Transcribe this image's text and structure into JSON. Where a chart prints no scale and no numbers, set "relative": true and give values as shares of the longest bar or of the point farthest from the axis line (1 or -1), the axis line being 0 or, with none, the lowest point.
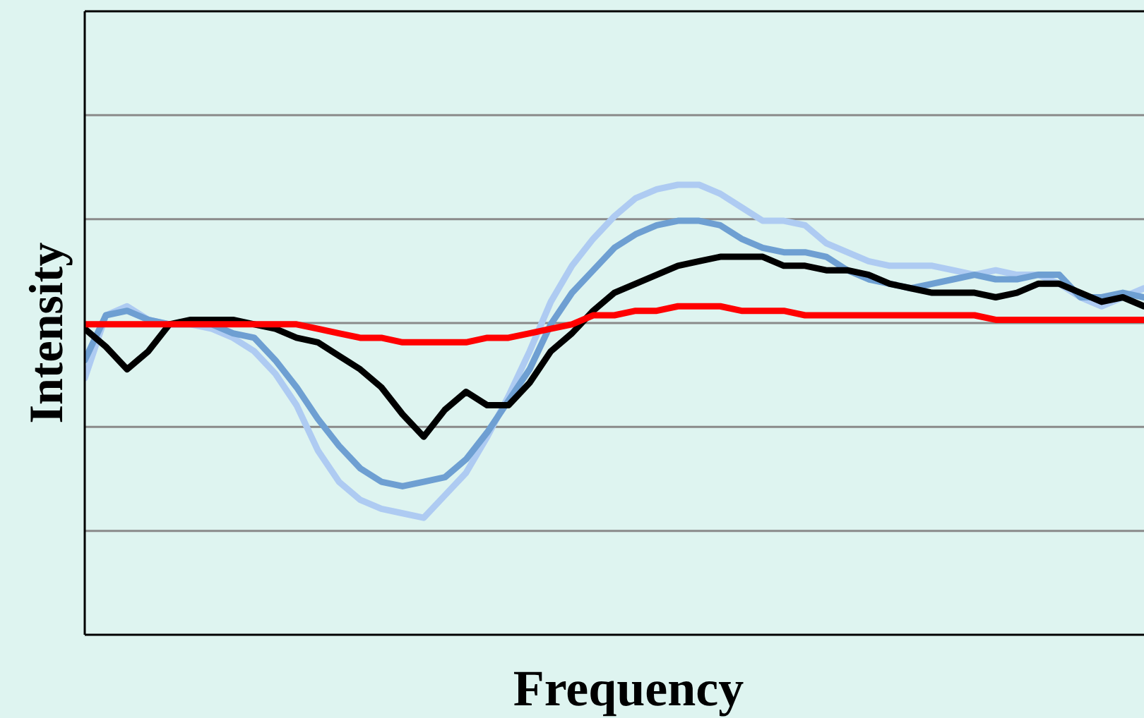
{
  "chart_data": {
    "type": "line",
    "relative": true,
    "xlabel": "Frequency",
    "ylabel": "Intensity",
    "grid": "y",
    "categories": [
      null,
      null,
      null,
      null,
      null,
      null,
      null,
      null,
      null,
      null,
      null,
      null,
      null,
      null,
      null,
      null,
      null,
      null,
      null,
      null,
      null,
      null,
      null,
      null,
      null,
      null,
      null,
      null,
      null,
      null,
      null,
      null,
      null,
      null,
      null,
      null,
      null,
      null,
      null,
      null,
      null,
      null,
      null,
      null,
      null,
      null,
      null,
      null,
      null,
      null,
      null
    ],
    "series": [
      {
        "color": "#aecbf2",
        "values": [
          0.57,
          0.71,
          0.73,
          0.7,
          0.69,
          0.69,
          0.68,
          0.66,
          0.63,
          0.58,
          0.51,
          0.41,
          0.34,
          0.3,
          0.28,
          0.27,
          0.26,
          0.31,
          0.36,
          0.44,
          0.53,
          0.63,
          0.74,
          0.82,
          0.88,
          0.93,
          0.97,
          0.99,
          1,
          1.0,
          0.98,
          0.95,
          0.92,
          0.92,
          0.91,
          0.87,
          0.85,
          0.83,
          0.82,
          0.82,
          0.82,
          0.81,
          0.8,
          0.81,
          0.8,
          0.8,
          0.78,
          0.75,
          0.73,
          0.75,
          0.77
        ]
      },
      {
        "color": "#6e9fd2",
        "values": [
          0.61,
          0.71,
          0.72,
          0.7,
          0.69,
          0.69,
          0.69,
          0.67,
          0.66,
          0.61,
          0.55,
          0.48,
          0.42,
          0.37,
          0.34,
          0.33,
          0.34,
          0.35,
          0.39,
          0.45,
          0.52,
          0.59,
          0.69,
          0.76,
          0.81,
          0.86,
          0.89,
          0.91,
          0.92,
          0.92,
          0.91,
          0.88,
          0.86,
          0.85,
          0.85,
          0.84,
          0.81,
          0.79,
          0.78,
          0.77,
          0.78,
          0.79,
          0.8,
          0.79,
          0.79,
          0.8,
          0.8,
          0.75,
          0.75,
          0.76,
          0.75
        ]
      },
      {
        "color": "#000000",
        "values": [
          0.68,
          0.64,
          0.59,
          0.63,
          0.69,
          0.7,
          0.7,
          0.7,
          0.69,
          0.68,
          0.66,
          0.65,
          0.62,
          0.59,
          0.55,
          0.49,
          0.44,
          0.5,
          0.54,
          0.51,
          0.51,
          0.56,
          0.63,
          0.67,
          0.72,
          0.76,
          0.78,
          0.8,
          0.82,
          0.83,
          0.84,
          0.84,
          0.84,
          0.82,
          0.82,
          0.81,
          0.81,
          0.8,
          0.78,
          0.77,
          0.76,
          0.76,
          0.76,
          0.75,
          0.76,
          0.78,
          0.78,
          0.76,
          0.74,
          0.75,
          0.73
        ]
      },
      {
        "color": "#ff0000",
        "values": [
          0.69,
          0.69,
          0.69,
          0.69,
          0.69,
          0.69,
          0.69,
          0.69,
          0.69,
          0.69,
          0.69,
          0.68,
          0.67,
          0.66,
          0.66,
          0.65,
          0.65,
          0.65,
          0.65,
          0.66,
          0.66,
          0.67,
          0.68,
          0.69,
          0.71,
          0.71,
          0.72,
          0.72,
          0.73,
          0.73,
          0.73,
          0.72,
          0.72,
          0.72,
          0.71,
          0.71,
          0.71,
          0.71,
          0.71,
          0.71,
          0.71,
          0.71,
          0.71,
          0.7,
          0.7,
          0.7,
          0.7,
          0.7,
          0.7,
          0.7,
          0.7
        ]
      }
    ]
  }
}
